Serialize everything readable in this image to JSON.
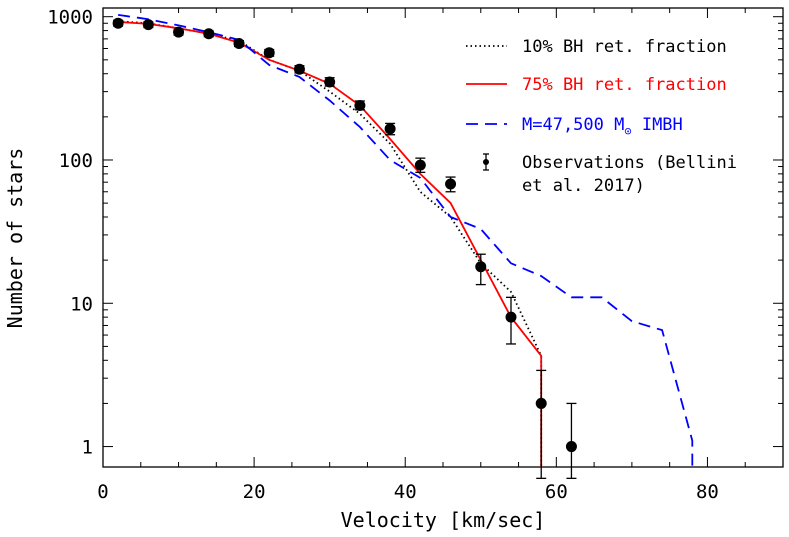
{
  "chart_data": {
    "type": "line",
    "title": "",
    "xlabel": "Velocity [km/sec]",
    "ylabel": "Number of stars",
    "xlim": [
      0,
      90
    ],
    "ylim": [
      0.72,
      1150
    ],
    "yscale": "log",
    "grid": false,
    "legend_position": "top-right",
    "x_ticks": [
      "0",
      "20",
      "40",
      "60",
      "80"
    ],
    "y_ticks": [
      "1",
      "10",
      "100",
      "1000"
    ],
    "series": [
      {
        "name": "10% BH ret. fraction",
        "style": "dotted",
        "color": "#000000",
        "x": [
          2,
          6,
          10,
          14,
          18,
          22,
          26,
          30,
          34,
          38,
          42,
          46,
          50,
          54,
          58
        ],
        "y": [
          930,
          900,
          830,
          760,
          680,
          500,
          420,
          300,
          210,
          130,
          60,
          40,
          19,
          12,
          4.3
        ]
      },
      {
        "name": "75% BH ret. fraction",
        "style": "solid",
        "color": "#ff0000",
        "x": [
          2,
          6,
          10,
          14,
          18,
          22,
          26,
          30,
          34,
          38,
          42,
          46,
          50,
          54,
          58
        ],
        "y": [
          920,
          890,
          830,
          760,
          660,
          500,
          420,
          340,
          240,
          140,
          80,
          50,
          20,
          8,
          4.3
        ]
      },
      {
        "name": "M=47,500 M⊙ IMBH",
        "style": "dashed",
        "color": "#0000ff",
        "x": [
          2,
          6,
          10,
          14,
          18,
          22,
          26,
          30,
          34,
          38,
          42,
          46,
          50,
          54,
          58,
          62,
          66,
          70,
          74,
          78
        ],
        "y": [
          1030,
          960,
          870,
          780,
          690,
          460,
          380,
          260,
          170,
          100,
          75,
          40,
          33,
          19,
          15.5,
          11,
          11,
          7.5,
          6.5,
          1.1
        ]
      },
      {
        "name": "Observations (Bellini et al. 2017)",
        "style": "points",
        "color": "#000000",
        "x": [
          2,
          6,
          10,
          14,
          18,
          22,
          26,
          30,
          34,
          38,
          42,
          46,
          50,
          54,
          58,
          62
        ],
        "y": [
          900,
          880,
          780,
          760,
          650,
          560,
          430,
          350,
          240,
          165,
          92,
          68,
          18,
          8,
          2,
          1
        ],
        "err_lo": [
          860,
          840,
          745,
          725,
          620,
          530,
          405,
          328,
          224,
          150,
          82,
          60,
          13.5,
          5.2,
          0.6,
          0.6
        ],
        "err_hi": [
          945,
          920,
          815,
          795,
          680,
          590,
          455,
          375,
          258,
          180,
          103,
          76,
          22,
          11,
          3.4,
          2
        ]
      }
    ],
    "legend": {
      "entries": [
        {
          "label": "10% BH ret. fraction",
          "color": "#000000"
        },
        {
          "label": "75% BH ret. fraction",
          "color": "#ff0000"
        },
        {
          "label": "M=47,500 M",
          "sub": "⊙",
          "tail": " IMBH",
          "color": "#0000ff"
        },
        {
          "label": "Observations (Bellini",
          "line2": "et al. 2017)",
          "color": "#000000"
        }
      ]
    }
  }
}
